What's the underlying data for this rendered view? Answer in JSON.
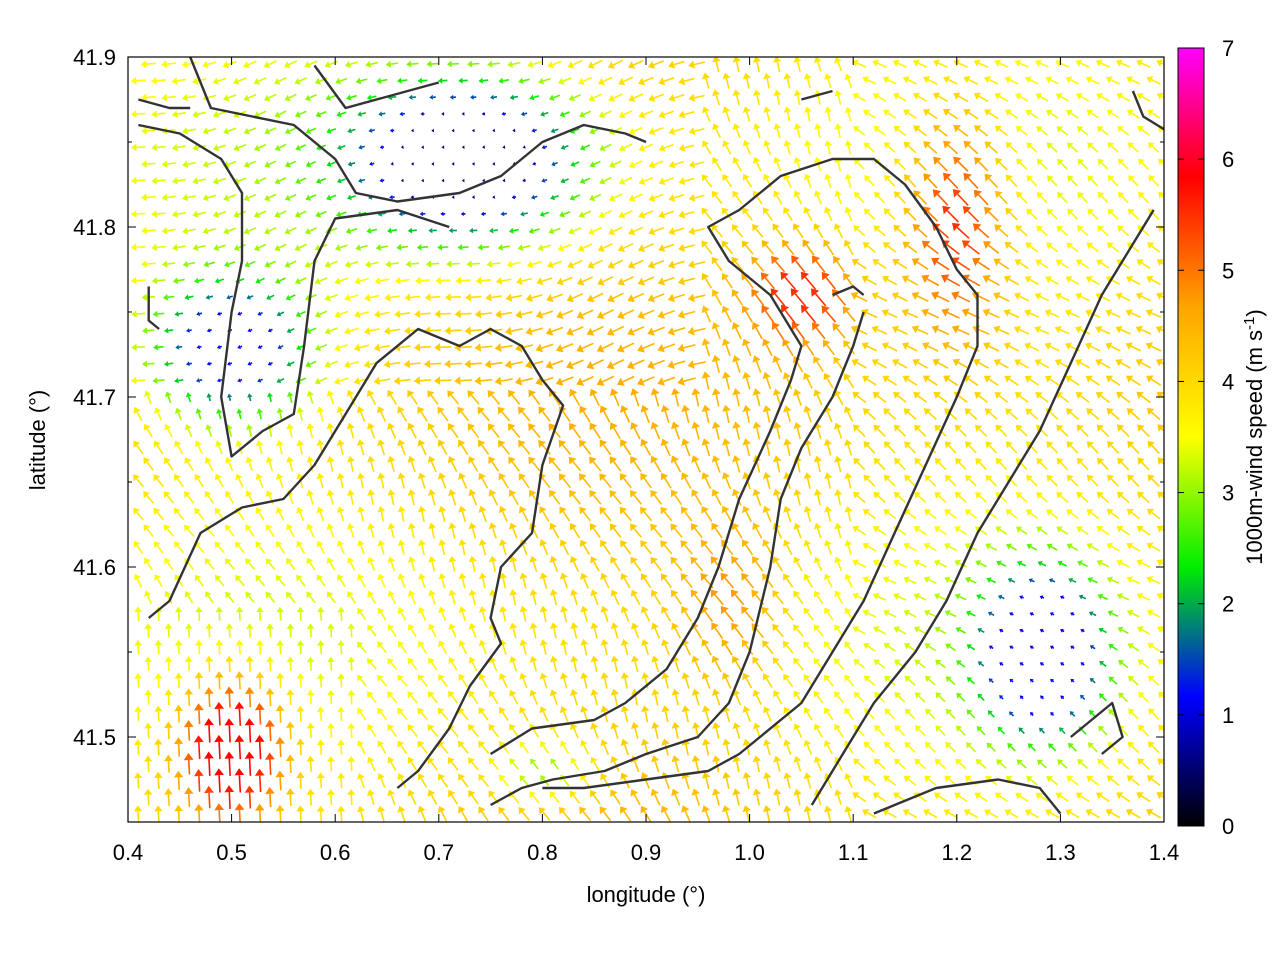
{
  "chart_data": {
    "type": "heatmap",
    "subtype": "wind-vector-field",
    "xlabel": "longitude (°)",
    "ylabel": "latitude (°)",
    "xlim": [
      0.4,
      1.4
    ],
    "ylim": [
      41.45,
      41.9
    ],
    "x_ticks": [
      "0.4",
      "0.5",
      "0.6",
      "0.7",
      "0.8",
      "0.9",
      "1.0",
      "1.1",
      "1.2",
      "1.3",
      "1.4"
    ],
    "y_ticks": [
      "41.5",
      "41.6",
      "41.7",
      "41.8",
      "41.9"
    ],
    "colorbar": {
      "label_main": "1000m-wind speed (m s",
      "label_sup": "-1",
      "label_end": ")",
      "range": [
        0,
        7
      ],
      "ticks": [
        "0",
        "1",
        "2",
        "3",
        "4",
        "5",
        "6",
        "7"
      ],
      "colors": [
        "#000000",
        "#0000ff",
        "#00ee00",
        "#ffff00",
        "#ffa500",
        "#ff0000",
        "#ff00ff"
      ]
    },
    "vector_grid": {
      "dlon": 0.0196,
      "dlat": 0.0098
    },
    "speed_field": [
      {
        "lon": 0.72,
        "lat": 41.84,
        "speed": 0.6,
        "amp": 1.4,
        "sx": 0.11,
        "sy": 0.045
      },
      {
        "lon": 0.5,
        "lat": 41.73,
        "speed": 1.2,
        "amp": 1.4,
        "sx": 0.07,
        "sy": 0.04
      },
      {
        "lon": 1.28,
        "lat": 41.55,
        "speed": 1.1,
        "amp": 2.0,
        "sx": 0.055,
        "sy": 0.045
      },
      {
        "lon": 1.05,
        "lat": 41.76,
        "speed": 5.5,
        "amp": 1.2,
        "sx": 0.05,
        "sy": 0.03
      },
      {
        "lon": 1.2,
        "lat": 41.8,
        "speed": 5.5,
        "amp": 1.0,
        "sx": 0.05,
        "sy": 0.07
      },
      {
        "lon": 0.5,
        "lat": 41.49,
        "speed": 5.8,
        "amp": 1.4,
        "sx": 0.05,
        "sy": 0.04
      },
      {
        "lon": 0.98,
        "lat": 41.58,
        "speed": 5.0,
        "amp": 0.8,
        "sx": 0.05,
        "sy": 0.05
      },
      {
        "lon": 0.8,
        "lat": 41.48,
        "speed": 3.0,
        "amp": 1.0,
        "sx": 0.05,
        "sy": 0.02
      }
    ],
    "coastlines": [
      [
        [
          0.46,
          41.9
        ],
        [
          0.48,
          41.87
        ],
        [
          0.52,
          41.865
        ],
        [
          0.56,
          41.86
        ],
        [
          0.6,
          41.84
        ],
        [
          0.62,
          41.82
        ],
        [
          0.66,
          41.815
        ],
        [
          0.72,
          41.82
        ],
        [
          0.76,
          41.83
        ],
        [
          0.8,
          41.85
        ],
        [
          0.84,
          41.86
        ],
        [
          0.88,
          41.855
        ],
        [
          0.9,
          41.85
        ]
      ],
      [
        [
          0.41,
          41.86
        ],
        [
          0.45,
          41.855
        ],
        [
          0.49,
          41.84
        ],
        [
          0.51,
          41.82
        ],
        [
          0.51,
          41.78
        ],
        [
          0.5,
          41.75
        ],
        [
          0.49,
          41.7
        ],
        [
          0.5,
          41.665
        ],
        [
          0.53,
          41.68
        ],
        [
          0.56,
          41.69
        ],
        [
          0.57,
          41.73
        ],
        [
          0.58,
          41.78
        ],
        [
          0.6,
          41.805
        ],
        [
          0.66,
          41.81
        ],
        [
          0.71,
          41.8
        ]
      ],
      [
        [
          0.41,
          41.875
        ],
        [
          0.44,
          41.87
        ],
        [
          0.46,
          41.87
        ]
      ],
      [
        [
          0.58,
          41.895
        ],
        [
          0.61,
          41.87
        ],
        [
          0.67,
          41.88
        ],
        [
          0.7,
          41.885
        ]
      ],
      [
        [
          0.42,
          41.57
        ],
        [
          0.44,
          41.58
        ],
        [
          0.47,
          41.62
        ],
        [
          0.51,
          41.635
        ],
        [
          0.55,
          41.64
        ],
        [
          0.58,
          41.66
        ],
        [
          0.61,
          41.69
        ],
        [
          0.64,
          41.72
        ],
        [
          0.68,
          41.74
        ],
        [
          0.72,
          41.73
        ],
        [
          0.75,
          41.74
        ],
        [
          0.78,
          41.73
        ],
        [
          0.8,
          41.71
        ],
        [
          0.82,
          41.695
        ],
        [
          0.8,
          41.66
        ],
        [
          0.79,
          41.62
        ],
        [
          0.76,
          41.6
        ],
        [
          0.75,
          41.57
        ],
        [
          0.76,
          41.555
        ],
        [
          0.73,
          41.53
        ],
        [
          0.71,
          41.505
        ],
        [
          0.68,
          41.48
        ],
        [
          0.66,
          41.47
        ]
      ],
      [
        [
          0.75,
          41.49
        ],
        [
          0.79,
          41.505
        ],
        [
          0.85,
          41.51
        ],
        [
          0.88,
          41.52
        ],
        [
          0.92,
          41.54
        ],
        [
          0.95,
          41.57
        ],
        [
          0.97,
          41.6
        ],
        [
          0.99,
          41.64
        ],
        [
          1.02,
          41.68
        ],
        [
          1.04,
          41.71
        ],
        [
          1.05,
          41.73
        ],
        [
          1.02,
          41.76
        ],
        [
          0.98,
          41.78
        ],
        [
          0.96,
          41.8
        ],
        [
          0.99,
          41.81
        ],
        [
          1.03,
          41.83
        ],
        [
          1.08,
          41.84
        ],
        [
          1.12,
          41.84
        ],
        [
          1.15,
          41.825
        ],
        [
          1.18,
          41.8
        ],
        [
          1.2,
          41.775
        ],
        [
          1.22,
          41.76
        ],
        [
          1.22,
          41.73
        ],
        [
          1.2,
          41.7
        ],
        [
          1.17,
          41.66
        ],
        [
          1.14,
          41.62
        ],
        [
          1.11,
          41.58
        ],
        [
          1.08,
          41.55
        ],
        [
          1.05,
          41.52
        ],
        [
          1.01,
          41.5
        ],
        [
          0.99,
          41.49
        ],
        [
          0.96,
          41.48
        ],
        [
          0.9,
          41.475
        ],
        [
          0.84,
          41.47
        ],
        [
          0.8,
          41.47
        ]
      ],
      [
        [
          0.75,
          41.46
        ],
        [
          0.78,
          41.47
        ],
        [
          0.81,
          41.475
        ],
        [
          0.86,
          41.48
        ],
        [
          0.9,
          41.49
        ],
        [
          0.95,
          41.5
        ],
        [
          0.98,
          41.52
        ],
        [
          1.0,
          41.55
        ],
        [
          1.02,
          41.6
        ],
        [
          1.03,
          41.64
        ],
        [
          1.05,
          41.67
        ],
        [
          1.08,
          41.7
        ],
        [
          1.1,
          41.73
        ],
        [
          1.11,
          41.75
        ]
      ],
      [
        [
          1.06,
          41.46
        ],
        [
          1.09,
          41.49
        ],
        [
          1.12,
          41.52
        ],
        [
          1.16,
          41.55
        ],
        [
          1.19,
          41.58
        ],
        [
          1.22,
          41.62
        ],
        [
          1.25,
          41.65
        ],
        [
          1.28,
          41.68
        ],
        [
          1.31,
          41.72
        ],
        [
          1.34,
          41.76
        ],
        [
          1.37,
          41.79
        ],
        [
          1.39,
          41.81
        ]
      ],
      [
        [
          1.12,
          41.455
        ],
        [
          1.18,
          41.47
        ],
        [
          1.24,
          41.475
        ],
        [
          1.28,
          41.47
        ],
        [
          1.3,
          41.455
        ]
      ],
      [
        [
          1.37,
          41.88
        ],
        [
          1.38,
          41.865
        ],
        [
          1.42,
          41.85
        ]
      ],
      [
        [
          1.05,
          41.875
        ],
        [
          1.08,
          41.88
        ]
      ],
      [
        [
          1.31,
          41.5
        ],
        [
          1.33,
          41.51
        ],
        [
          1.35,
          41.52
        ],
        [
          1.36,
          41.5
        ],
        [
          1.34,
          41.49
        ]
      ],
      [
        [
          1.08,
          41.76
        ],
        [
          1.1,
          41.765
        ],
        [
          1.11,
          41.76
        ]
      ],
      [
        [
          0.42,
          41.765
        ],
        [
          0.42,
          41.745
        ],
        [
          0.43,
          41.74
        ]
      ]
    ]
  }
}
